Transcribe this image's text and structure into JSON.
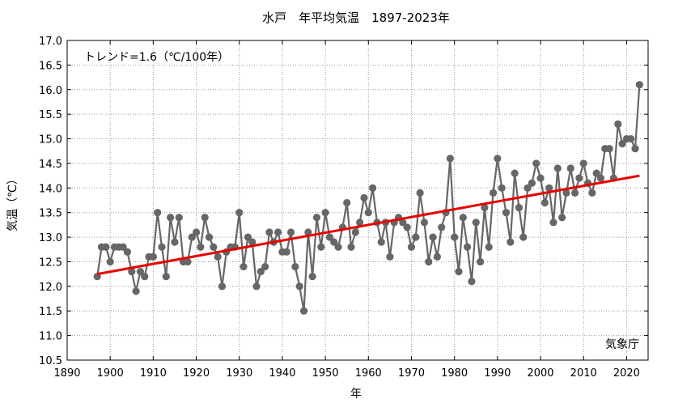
{
  "chart_data": {
    "type": "line",
    "title": "水戸　年平均気温　1897-2023年",
    "xlabel": "年",
    "ylabel": "気温（℃）",
    "xlim": [
      1890,
      2025
    ],
    "ylim": [
      10.5,
      17.0
    ],
    "xticks": [
      1890,
      1900,
      1910,
      1920,
      1930,
      1940,
      1950,
      1960,
      1970,
      1980,
      1990,
      2000,
      2010,
      2020
    ],
    "yticks": [
      "10.5",
      "11.0",
      "11.5",
      "12.0",
      "12.5",
      "13.0",
      "13.5",
      "14.0",
      "14.5",
      "15.0",
      "15.5",
      "16.0",
      "16.5",
      "17.0"
    ],
    "grid": true,
    "trend_label": "トレンド=1.6（℃/100年）",
    "source_label": "気象庁",
    "series": [
      {
        "type": "line-marker",
        "color": "#666666",
        "x_start": 1897,
        "values": [
          12.2,
          12.8,
          12.8,
          12.5,
          12.8,
          12.8,
          12.8,
          12.7,
          12.3,
          11.9,
          12.3,
          12.2,
          12.6,
          12.6,
          13.5,
          12.8,
          12.2,
          13.4,
          12.9,
          13.4,
          12.5,
          12.5,
          13.0,
          13.1,
          12.8,
          13.4,
          13.0,
          12.8,
          12.6,
          12.0,
          12.7,
          12.8,
          12.8,
          13.5,
          12.4,
          13.0,
          12.9,
          12.0,
          12.3,
          12.4,
          13.1,
          12.9,
          13.1,
          12.7,
          12.7,
          13.1,
          12.4,
          12.0,
          11.5,
          13.1,
          12.2,
          13.4,
          12.8,
          13.5,
          13.0,
          12.9,
          12.8,
          13.2,
          13.7,
          12.8,
          13.1,
          13.3,
          13.8,
          13.5,
          14.0,
          13.3,
          12.9,
          13.3,
          12.6,
          13.3,
          13.4,
          13.3,
          13.2,
          12.8,
          13.0,
          13.9,
          13.3,
          12.5,
          13.0,
          12.6,
          13.2,
          13.5,
          14.6,
          13.0,
          12.3,
          13.4,
          12.8,
          12.1,
          13.3,
          12.5,
          13.6,
          12.8,
          13.9,
          14.6,
          14.0,
          13.5,
          12.9,
          14.3,
          13.6,
          13.0,
          14.0,
          14.1,
          14.5,
          14.2,
          13.7,
          14.0,
          13.3,
          14.4,
          13.4,
          13.9,
          14.4,
          13.9,
          14.2,
          14.5,
          14.1,
          13.9,
          14.3,
          14.2,
          14.8,
          14.8,
          14.2,
          15.3,
          14.9,
          15.0,
          15.0,
          14.8,
          16.1
        ]
      },
      {
        "type": "trend",
        "color": "#e60000",
        "x": [
          1897,
          2023
        ],
        "values": [
          12.25,
          14.25
        ]
      }
    ]
  }
}
